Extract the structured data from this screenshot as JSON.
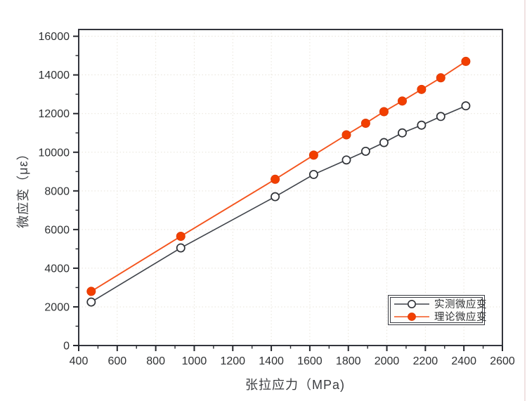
{
  "page": {
    "background": "#ffffff"
  },
  "chart_data": {
    "type": "line",
    "title": "",
    "xlabel": "张拉应力（MPa)",
    "ylabel": "微应变（με）",
    "x": [
      465,
      930,
      1420,
      1620,
      1790,
      1890,
      1985,
      2080,
      2180,
      2280,
      2410
    ],
    "series": [
      {
        "name": "实测微应变",
        "values": [
          2250,
          5050,
          7700,
          8850,
          9600,
          10050,
          10500,
          11000,
          11400,
          11850,
          12400
        ],
        "line_color": "#3e4249",
        "marker": "open-circle",
        "marker_fill": "#ffffff",
        "marker_stroke": "#2f3237"
      },
      {
        "name": "理论微应变",
        "values": [
          2800,
          5650,
          8600,
          9850,
          10900,
          11500,
          12100,
          12650,
          13250,
          13850,
          14700
        ],
        "line_color": "#f4541d",
        "marker": "filled-circle",
        "marker_fill": "#f23f00",
        "marker_stroke": "#e03a00"
      }
    ],
    "xlim": [
      400,
      2600
    ],
    "ylim": [
      0,
      16350
    ],
    "x_major_ticks": [
      400,
      600,
      800,
      1000,
      1200,
      1400,
      1600,
      1800,
      2000,
      2200,
      2400,
      2600
    ],
    "y_major_ticks": [
      0,
      2000,
      4000,
      6000,
      8000,
      10000,
      12000,
      14000,
      16000
    ],
    "x_minor_ticks": [
      500,
      700,
      900,
      1100,
      1300,
      1500,
      1700,
      1900,
      2100,
      2300,
      2500
    ],
    "y_minor_ticks": [
      1000,
      3000,
      5000,
      7000,
      9000,
      11000,
      13000,
      15000
    ],
    "grid": "dotted",
    "legend_position": "inside-bottom-right"
  },
  "styles": {
    "frame_color": "#33353d",
    "grid_color": "#e8e4da",
    "tick_color": "#26282e",
    "tick_label_color": "#2f3133",
    "axis_title_color": "#3c3e42",
    "legend_border_color": "#3b3d45"
  }
}
